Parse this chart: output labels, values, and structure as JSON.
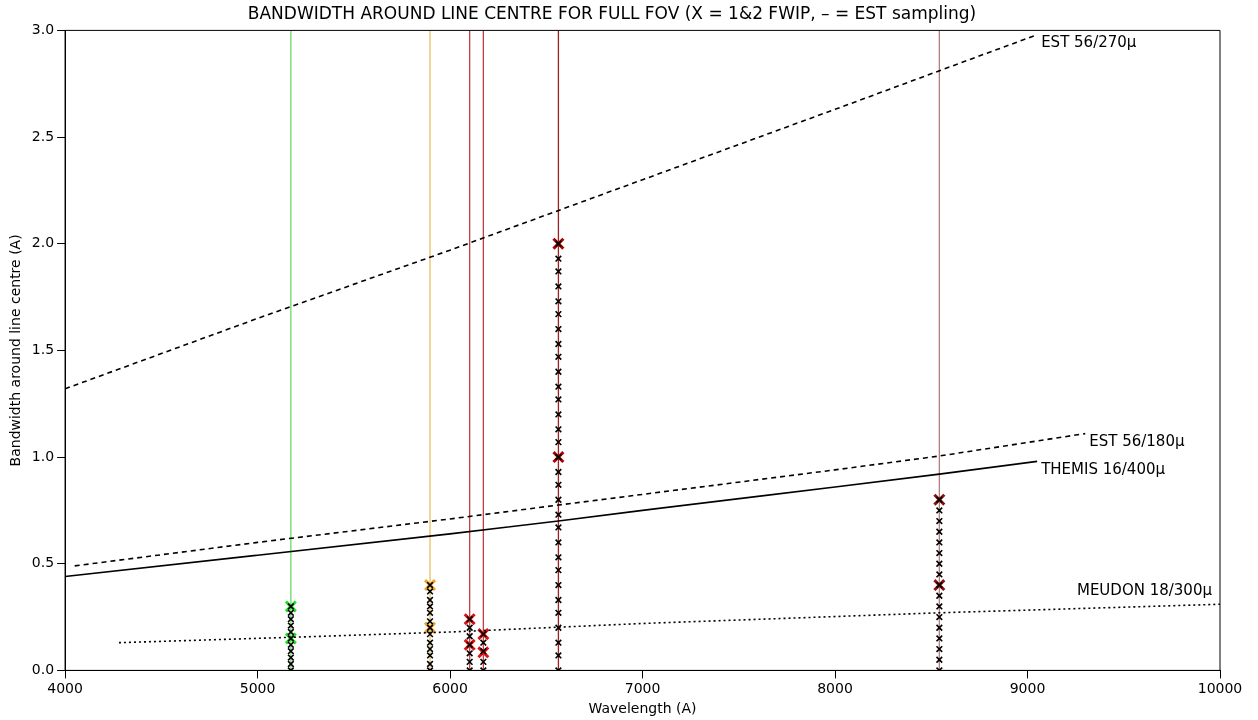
{
  "chart_data": {
    "type": "line",
    "title": "BANDWIDTH AROUND LINE CENTRE FOR FULL FOV (X = 1&2 FWIP, – = EST sampling)",
    "xlabel": "Wavelength (A)",
    "ylabel": "Bandwidth around line centre (A)",
    "xlim": [
      4000,
      10000
    ],
    "xticks": [
      4000,
      5000,
      6000,
      7000,
      8000,
      9000,
      10000
    ],
    "ylim": [
      0,
      3
    ],
    "yticks": [
      {
        "value": 0,
        "label": "0.0"
      },
      {
        "value": 0.5,
        "label": "0.5"
      },
      {
        "value": 1,
        "label": "1.0"
      },
      {
        "value": 1.5,
        "label": "1.5"
      },
      {
        "value": 2,
        "label": "2.0"
      },
      {
        "value": 2.5,
        "label": "2.5"
      },
      {
        "value": 3,
        "label": "3.0"
      }
    ],
    "grid": false,
    "legend": false,
    "series": [
      {
        "name": "EST 56/270µ",
        "line_style": "dashed",
        "color": "#000000",
        "x": [
          4000,
          5000,
          6000,
          7000,
          8000,
          9050
        ],
        "values": [
          1.32,
          1.65,
          1.97,
          2.3,
          2.63,
          2.98
        ]
      },
      {
        "name": "EST 56/180µ",
        "line_style": "dashed",
        "color": "#000000",
        "x": [
          4050,
          5000,
          6000,
          6563,
          7000,
          8000,
          8542,
          9300
        ],
        "values": [
          0.49,
          0.6,
          0.71,
          0.775,
          0.825,
          0.94,
          1.005,
          1.11
        ]
      },
      {
        "name": "THEMIS 16/400µ",
        "line_style": "solid",
        "color": "#000000",
        "x": [
          4000,
          5000,
          6000,
          6563,
          7000,
          8000,
          8542,
          9050
        ],
        "values": [
          0.44,
          0.54,
          0.64,
          0.7,
          0.75,
          0.86,
          0.92,
          0.98
        ]
      },
      {
        "name": "MEUDON 18/300µ",
        "line_style": "dotted",
        "color": "#000000",
        "x": [
          4280,
          5173,
          6000,
          7000,
          8542,
          10000
        ],
        "values": [
          0.13,
          0.155,
          0.18,
          0.22,
          0.27,
          0.31
        ]
      },
      {
        "type": "scatter",
        "marker": "cross",
        "color": "#000000",
        "x": [
          5173,
          5173,
          5173,
          5173,
          5173,
          5173,
          5173,
          5173,
          5173,
          5173,
          5173,
          5896,
          5896,
          5896,
          5896,
          5896,
          5896,
          5896,
          5896,
          5896,
          5896,
          5896,
          5896,
          5896,
          6102,
          6102,
          6102,
          6102,
          6102,
          6102,
          6102,
          6173,
          6173,
          6173,
          6173,
          6173,
          6563,
          6563,
          6563,
          6563,
          6563,
          6563,
          6563,
          6563,
          6563,
          6563,
          6563,
          6563,
          6563,
          6563,
          6563,
          6563,
          6563,
          6563,
          6563,
          6563,
          6563,
          6563,
          6563,
          6563,
          6563,
          6563,
          6563,
          6563,
          6563,
          6563,
          6563,
          8542,
          8542,
          8542,
          8542,
          8542,
          8542,
          8542,
          8542,
          8542,
          8542,
          8542,
          8542,
          8542,
          8542,
          8542,
          8542,
          8542
        ],
        "values": [
          0,
          0.03,
          0.06,
          0.09,
          0.12,
          0.15,
          0.18,
          0.21,
          0.24,
          0.27,
          0.3,
          0,
          0.03,
          0.07,
          0.1,
          0.13,
          0.17,
          0.2,
          0.23,
          0.27,
          0.3,
          0.33,
          0.37,
          0.4,
          0,
          0.04,
          0.08,
          0.12,
          0.16,
          0.2,
          0.24,
          0,
          0.04,
          0.09,
          0.13,
          0.17,
          0,
          0.07,
          0.13,
          0.2,
          0.27,
          0.33,
          0.4,
          0.47,
          0.53,
          0.6,
          0.67,
          0.73,
          0.8,
          0.87,
          0.93,
          1.0,
          1.07,
          1.13,
          1.2,
          1.27,
          1.33,
          1.4,
          1.47,
          1.53,
          1.6,
          1.67,
          1.73,
          1.8,
          1.87,
          1.93,
          2.0,
          0,
          0.05,
          0.1,
          0.15,
          0.2,
          0.25,
          0.3,
          0.35,
          0.4,
          0.45,
          0.5,
          0.55,
          0.6,
          0.65,
          0.7,
          0.75,
          0.8
        ]
      },
      {
        "type": "scatter",
        "marker": "cross",
        "color": "#cc0000",
        "x": [
          5173,
          5173,
          5896,
          5896,
          6102,
          6102,
          6173,
          6173,
          6563,
          6563,
          8542,
          8542
        ],
        "values": [
          0.3,
          0.15,
          0.4,
          0.2,
          0.24,
          0.12,
          0.17,
          0.085,
          2.0,
          1.0,
          0.8,
          0.4
        ],
        "colors": [
          "#22dd22",
          "#22dd22",
          "#f0a020",
          "#f0a020",
          "#dd1111",
          "#dd1111",
          "#dd1111",
          "#dd1111",
          "#aa0000",
          "#aa0000",
          "#8b1010",
          "#8b1010"
        ]
      }
    ],
    "ref_lines": [
      {
        "axis": "x",
        "value": 5173,
        "color": "#66dd66"
      },
      {
        "axis": "x",
        "value": 5896,
        "color": "#e8c060"
      },
      {
        "axis": "x",
        "value": 6102,
        "color": "#c04040"
      },
      {
        "axis": "x",
        "value": 6173,
        "color": "#c04040"
      },
      {
        "axis": "x",
        "value": 6563,
        "color": "#a02020"
      },
      {
        "axis": "x",
        "value": 8542,
        "color": "#b08080"
      }
    ]
  }
}
